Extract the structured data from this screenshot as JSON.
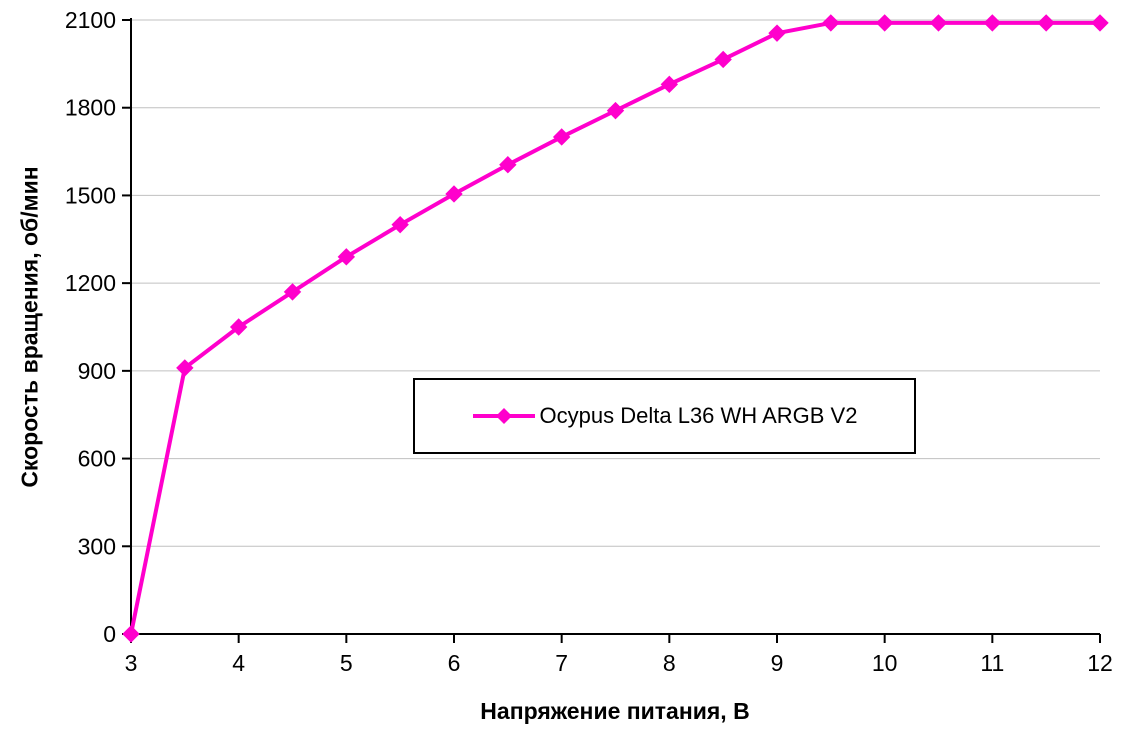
{
  "chart_data": {
    "type": "line",
    "x": [
      3,
      3.5,
      4,
      4.5,
      5,
      5.5,
      6,
      6.5,
      7,
      7.5,
      8,
      8.5,
      9,
      9.5,
      10,
      10.5,
      11,
      11.5,
      12
    ],
    "series": [
      {
        "name": "Ocypus Delta L36 WH ARGB V2",
        "color": "#ff00cc",
        "marker": "diamond",
        "values": [
          0,
          910,
          1050,
          1170,
          1290,
          1400,
          1505,
          1605,
          1700,
          1790,
          1880,
          1965,
          2055,
          2090,
          2090,
          2090,
          2090,
          2090,
          2090
        ]
      }
    ],
    "title": "",
    "xlabel": "Напряжение питания, В",
    "ylabel": "Скорость вращения, об/мин",
    "xlim": [
      3,
      12
    ],
    "ylim": [
      0,
      2100
    ],
    "x_ticks": [
      3,
      4,
      5,
      6,
      7,
      8,
      9,
      10,
      11,
      12
    ],
    "y_ticks": [
      0,
      300,
      600,
      900,
      1200,
      1500,
      1800,
      2100
    ],
    "grid": "horizontal",
    "legend_position": "center-inside",
    "colors": {
      "grid": "#c0c0c0",
      "axis": "#000000",
      "text": "#000000",
      "background": "#ffffff"
    }
  }
}
